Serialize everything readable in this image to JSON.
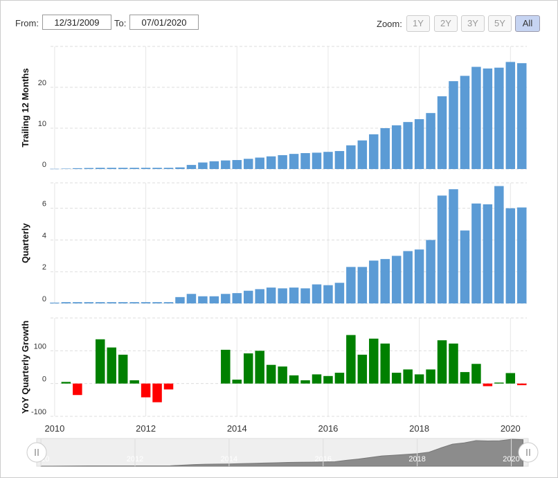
{
  "range_selector": {
    "from_label": "From:",
    "from": "12/31/2009",
    "to_label": "To:",
    "to": "07/01/2020",
    "zoom_label": "Zoom:",
    "buttons": [
      "1Y",
      "2Y",
      "3Y",
      "5Y",
      "All"
    ],
    "selected": "All"
  },
  "chart_data": [
    {
      "type": "bar",
      "y_label": "Trailing 12 Months",
      "color": "#5b9bd5",
      "x": [
        2010,
        2010.25,
        2010.5,
        2010.75,
        2011,
        2011.25,
        2011.5,
        2011.75,
        2012,
        2012.25,
        2012.5,
        2012.75,
        2013,
        2013.25,
        2013.5,
        2013.75,
        2014,
        2014.25,
        2014.5,
        2014.75,
        2015,
        2015.25,
        2015.5,
        2015.75,
        2016,
        2016.25,
        2016.5,
        2016.75,
        2017,
        2017.25,
        2017.5,
        2017.75,
        2018,
        2018.25,
        2018.5,
        2018.75,
        2019,
        2019.25,
        2019.5,
        2019.75,
        2020,
        2020.25
      ],
      "values": [
        0.05,
        0.1,
        0.2,
        0.25,
        0.3,
        0.3,
        0.3,
        0.3,
        0.3,
        0.3,
        0.3,
        0.4,
        1.0,
        1.6,
        1.9,
        2.1,
        2.2,
        2.5,
        2.8,
        3.1,
        3.4,
        3.7,
        3.9,
        4.0,
        4.2,
        4.4,
        5.8,
        7.0,
        8.5,
        10.0,
        10.7,
        11.5,
        12.2,
        13.7,
        17.8,
        21.5,
        22.8,
        25.0,
        24.6,
        24.8,
        26.2,
        25.9
      ],
      "xlim": [
        2009.91,
        2020.36
      ],
      "xticks": [
        2010,
        2012,
        2014,
        2016,
        2018,
        2020
      ],
      "ylim": [
        0,
        30
      ],
      "yticks": [
        0,
        10,
        20
      ],
      "grid": true
    },
    {
      "type": "bar",
      "y_label": "Quarterly",
      "color": "#5b9bd5",
      "x": [
        2010,
        2010.25,
        2010.5,
        2010.75,
        2011,
        2011.25,
        2011.5,
        2011.75,
        2012,
        2012.25,
        2012.5,
        2012.75,
        2013,
        2013.25,
        2013.5,
        2013.75,
        2014,
        2014.25,
        2014.5,
        2014.75,
        2015,
        2015.25,
        2015.5,
        2015.75,
        2016,
        2016.25,
        2016.5,
        2016.75,
        2017,
        2017.25,
        2017.5,
        2017.75,
        2018,
        2018.25,
        2018.5,
        2018.75,
        2019,
        2019.25,
        2019.5,
        2019.75,
        2020,
        2020.25
      ],
      "values": [
        0.05,
        0.08,
        0.08,
        0.08,
        0.08,
        0.08,
        0.08,
        0.08,
        0.08,
        0.08,
        0.08,
        0.4,
        0.6,
        0.45,
        0.45,
        0.6,
        0.65,
        0.8,
        0.9,
        1.0,
        0.95,
        1.0,
        0.95,
        1.2,
        1.15,
        1.3,
        2.3,
        2.3,
        2.7,
        2.8,
        3.0,
        3.3,
        3.4,
        4.0,
        6.8,
        7.2,
        4.6,
        6.3,
        6.25,
        7.4,
        6.0,
        6.05
      ],
      "xlim": [
        2009.91,
        2020.36
      ],
      "xticks": [
        2010,
        2012,
        2014,
        2016,
        2018,
        2020
      ],
      "ylim": [
        0,
        7.6
      ],
      "yticks": [
        0,
        2,
        4,
        6
      ],
      "grid": true
    },
    {
      "type": "bar",
      "y_label": "YoY Quarterly Growth",
      "color": "#008000",
      "negative_color": "#ff0000",
      "x": [
        2010,
        2010.25,
        2010.5,
        2010.75,
        2011,
        2011.25,
        2011.5,
        2011.75,
        2012,
        2012.25,
        2012.5,
        2012.75,
        2013,
        2013.25,
        2013.5,
        2013.75,
        2014,
        2014.25,
        2014.5,
        2014.75,
        2015,
        2015.25,
        2015.5,
        2015.75,
        2016,
        2016.25,
        2016.5,
        2016.75,
        2017,
        2017.25,
        2017.5,
        2017.75,
        2018,
        2018.25,
        2018.5,
        2018.75,
        2019,
        2019.25,
        2019.5,
        2019.75,
        2020,
        2020.25
      ],
      "values": [
        null,
        5,
        -35,
        null,
        135,
        110,
        88,
        10,
        -42,
        -57,
        -18,
        null,
        null,
        null,
        null,
        103,
        12,
        92,
        100,
        57,
        52,
        25,
        10,
        28,
        23,
        33,
        148,
        88,
        137,
        122,
        33,
        43,
        28,
        43,
        132,
        122,
        35,
        60,
        -8,
        3,
        32,
        -5
      ],
      "xlim": [
        2009.91,
        2020.36
      ],
      "xticks": [
        2010,
        2012,
        2014,
        2016,
        2018,
        2020
      ],
      "ylim": [
        -100,
        200
      ],
      "yticks": [
        -100,
        0,
        100
      ],
      "grid": true
    }
  ],
  "navigator": {
    "xticks": [
      2010,
      2012,
      2014,
      2016,
      2018,
      2020
    ],
    "ylim": [
      0,
      27
    ]
  }
}
